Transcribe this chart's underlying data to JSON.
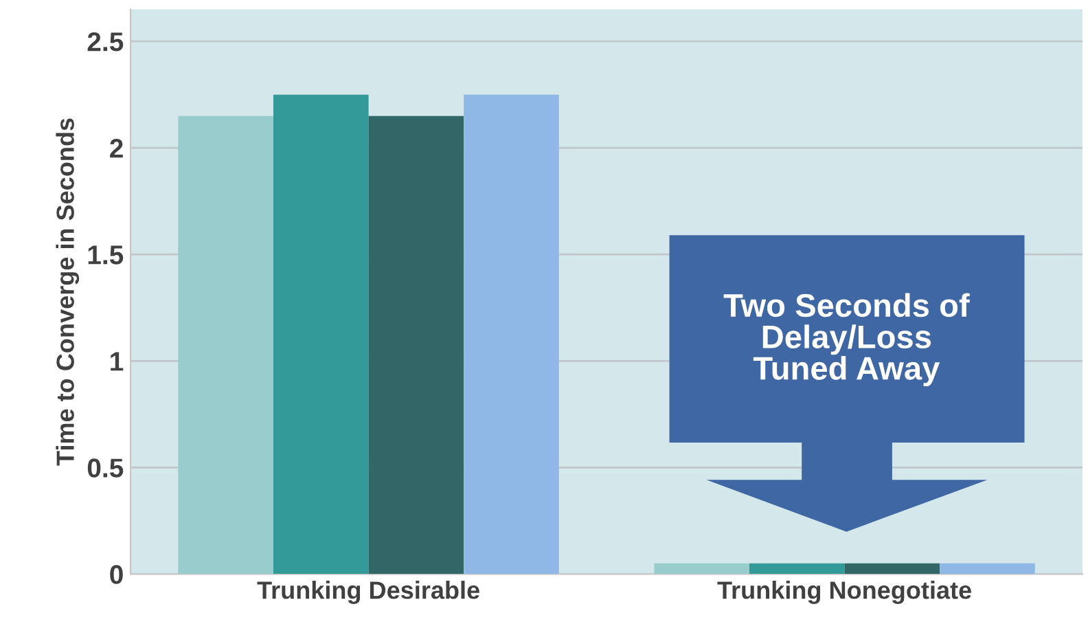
{
  "chart_data": {
    "type": "bar",
    "ylabel": "Time to Converge in Seconds",
    "categories": [
      "Trunking Desirable",
      "Trunking Nonegotiate"
    ],
    "series": [
      {
        "color": "#99cccc",
        "values": [
          2.15,
          0.05
        ]
      },
      {
        "color": "#339999",
        "values": [
          2.25,
          0.05
        ]
      },
      {
        "color": "#336666",
        "values": [
          2.15,
          0.05
        ]
      },
      {
        "color": "#8fb8e6",
        "values": [
          2.25,
          0.05
        ]
      }
    ],
    "ylim": [
      0,
      2.65
    ],
    "yticks": [
      0,
      0.5,
      1,
      1.5,
      2,
      2.5
    ],
    "grid": "y",
    "legend": false,
    "annotations": [
      "Two Seconds of Delay/Loss Tuned Away"
    ]
  }
}
